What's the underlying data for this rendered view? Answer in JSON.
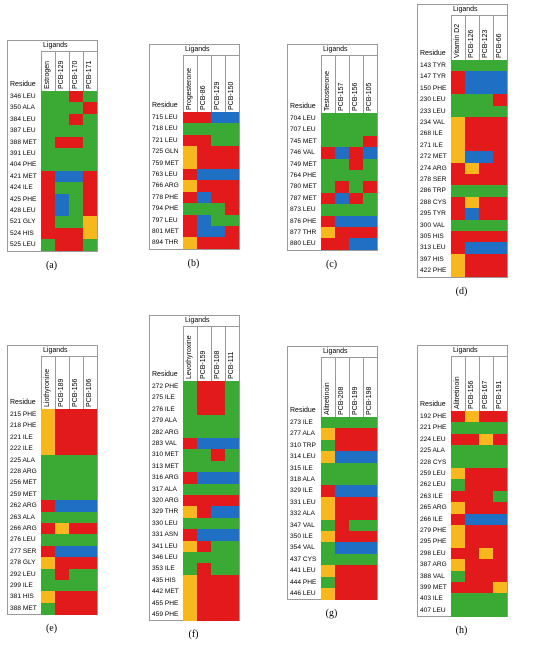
{
  "legend_title": "Ligands",
  "residue_header": "Residue",
  "colors": {
    "R": "#e31a1c",
    "G": "#3aaa35",
    "B": "#1f6fc4",
    "Y": "#f7b81e"
  },
  "panels": [
    {
      "label": "(a)",
      "ligands": [
        "Estrogen",
        "PCB-129",
        "PCB-170",
        "PCB-171"
      ],
      "residues": [
        "346 LEU",
        "350 ALA",
        "384 LEU",
        "387 LEU",
        "388 MET",
        "391 LEU",
        "404 PHE",
        "421 MET",
        "424 ILE",
        "425 PHE",
        "428 LEU",
        "521 GLY",
        "524 HIS",
        "525 LEU"
      ],
      "cells": [
        "GGRG",
        "GGGR",
        "GGRG",
        "GGGG",
        "GRRG",
        "GGGG",
        "GGGG",
        "RBBR",
        "RGGR",
        "RBGR",
        "RBGR",
        "RGGY",
        "RRRY",
        "GRRG"
      ]
    },
    {
      "label": "(b)",
      "ligands": [
        "Progesterone",
        "PCB-86",
        "PCB-129",
        "PCB-150"
      ],
      "residues": [
        "715 LEU",
        "718 LEU",
        "721 LEU",
        "725 GLN",
        "759 MET",
        "763 LEU",
        "766 ARG",
        "778 PHE",
        "794 PHE",
        "797 LEU",
        "801 MET",
        "894 THR"
      ],
      "cells": [
        "RRBB",
        "GGGG",
        "RRGG",
        "YRRR",
        "YRRR",
        "RBBB",
        "YRRR",
        "RBRR",
        "GGGR",
        "RBGG",
        "RBBR",
        "YRRR"
      ]
    },
    {
      "label": "(c)",
      "ligands": [
        "Testosterone",
        "PCB-157",
        "PCB-156",
        "PCB-105"
      ],
      "residues": [
        "704 LEU",
        "707 LEU",
        "745 MET",
        "746 VAL",
        "749 MET",
        "764 PHE",
        "780 MET",
        "787 MET",
        "873 LEU",
        "876 PHE",
        "877 THR",
        "880 LEU"
      ],
      "cells": [
        "GGGG",
        "GGGG",
        "GGGR",
        "RBRB",
        "GGRG",
        "GGGG",
        "GRGR",
        "RBRG",
        "GGGG",
        "RBBB",
        "YRRR",
        "RRBB"
      ]
    },
    {
      "label": "(d)",
      "ligands": [
        "Vitamin D2",
        "PCB-126",
        "PCB-123",
        "PCB-66"
      ],
      "residues": [
        "143 TYR",
        "147 TYR",
        "150 PHE",
        "230 LEU",
        "233 LEU",
        "234 VAL",
        "268 ILE",
        "271 ILE",
        "272 MET",
        "274 ARG",
        "278 SER",
        "286 TRP",
        "288 CYS",
        "295 TYR",
        "300 VAL",
        "305 HIS",
        "313 LEU",
        "397 HIS",
        "422 PHE"
      ],
      "cells": [
        "GGGG",
        "RBBB",
        "RBBB",
        "GGGR",
        "GGGG",
        "YRRR",
        "YRRR",
        "YRRR",
        "YBBR",
        "RYRR",
        "RRRR",
        "GGGG",
        "RYRR",
        "RBRR",
        "GGGG",
        "RRRR",
        "RBBB",
        "YRRR",
        "YRRR"
      ]
    },
    {
      "label": "(e)",
      "ligands": [
        "Liothyronine",
        "PCB-189",
        "PCB-156",
        "PCB-106"
      ],
      "residues": [
        "215 PHE",
        "218 PHE",
        "221 ILE",
        "222 ILE",
        "225 ALA",
        "228 ARG",
        "256 MET",
        "259 MET",
        "262 ARG",
        "263 ALA",
        "266 ARG",
        "276 LEU",
        "277 SER",
        "278 GLY",
        "292 LEU",
        "299 ILE",
        "381 HIS",
        "388 MET"
      ],
      "cells": [
        "YRRR",
        "YRRR",
        "YRRR",
        "YRRR",
        "GGGG",
        "GGGG",
        "GGGG",
        "GGGG",
        "RBBB",
        "GGGG",
        "RYRR",
        "GGGG",
        "RBBB",
        "YRRR",
        "GRGG",
        "GGGG",
        "YRRR",
        "GRRR"
      ]
    },
    {
      "label": "(f)",
      "ligands": [
        "Levothyroxine",
        "PCB-159",
        "PCB-108",
        "PCB-111"
      ],
      "residues": [
        "272 PHE",
        "275 ILE",
        "276 ILE",
        "279 ALA",
        "282 ARG",
        "283 VAL",
        "310 MET",
        "313 MET",
        "316 ARG",
        "317 ALA",
        "320 ARG",
        "329 THR",
        "330 LEU",
        "331 ASN",
        "341 LEU",
        "346 LEU",
        "353 ILE",
        "435 HIS",
        "442 MET",
        "455 PHE",
        "459 PHE"
      ],
      "cells": [
        "GRRG",
        "GRRG",
        "GRRG",
        "GGGG",
        "GGGG",
        "RBBB",
        "GGRG",
        "GGGG",
        "RBBB",
        "GGGG",
        "RRRR",
        "YRBB",
        "GGGG",
        "RBBB",
        "YRGG",
        "GGGG",
        "GRGG",
        "YRRR",
        "YRRR",
        "YRRR",
        "YRRR"
      ]
    },
    {
      "label": "(g)",
      "ligands": [
        "Alitretinoin",
        "PCB-208",
        "PCB-199",
        "PCB-198"
      ],
      "residues": [
        "273 ILE",
        "277 ALA",
        "310 TRP",
        "314 LEU",
        "315 ILE",
        "318 ALA",
        "329 ILE",
        "331 LEU",
        "332 ALA",
        "347 VAL",
        "350 ILE",
        "354 VAL",
        "437 CYS",
        "441 LEU",
        "444 PHE",
        "446 LEU"
      ],
      "cells": [
        "GGGG",
        "YRRR",
        "GRRR",
        "YBBB",
        "GGGG",
        "GGGG",
        "RBBB",
        "YRRR",
        "YRRR",
        "GRGG",
        "YRRR",
        "GBBB",
        "GGGG",
        "YRRR",
        "GRRR",
        "YRRR"
      ]
    },
    {
      "label": "(h)",
      "ligands": [
        "Alitretinoin",
        "PCB-156",
        "PCB-167",
        "PCB-191"
      ],
      "residues": [
        "192 PHE",
        "221 PHE",
        "224 LEU",
        "225 ALA",
        "228 CYS",
        "259 LEU",
        "262 LEU",
        "263 ILE",
        "265 ARG",
        "266 ILE",
        "279 PHE",
        "295 PHE",
        "298 LEU",
        "387 ARG",
        "388 VAL",
        "399 MET",
        "403 ILE",
        "407 LEU"
      ],
      "cells": [
        "RYRR",
        "GGGG",
        "RRYR",
        "GGGG",
        "GGGG",
        "YRRR",
        "GRRR",
        "RRRG",
        "YRRR",
        "RBBB",
        "YRRR",
        "YRRR",
        "RRYR",
        "YRRR",
        "GRRR",
        "RRRY",
        "GGGG",
        "GGGG"
      ]
    }
  ]
}
